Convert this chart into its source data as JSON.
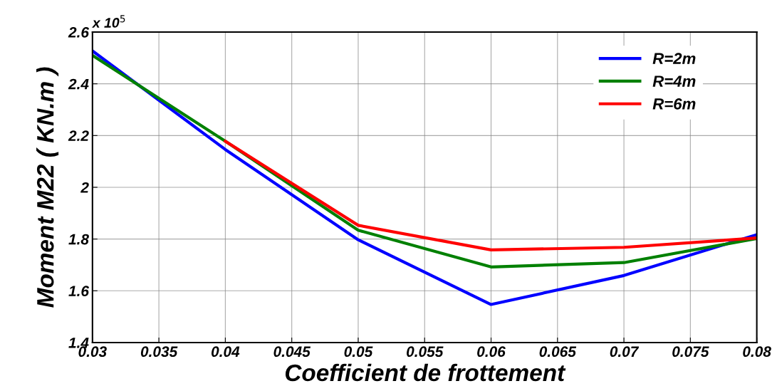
{
  "chart_data": {
    "type": "line",
    "xlabel": "Coefficient de frottement",
    "ylabel": "Moment M22 ( KN.m )",
    "annotations": [
      "x 10$^{5}$"
    ],
    "x": [
      0.03,
      0.04,
      0.05,
      0.06,
      0.07,
      0.08
    ],
    "series": [
      {
        "name": "R=2m",
        "color": "#0000ff",
        "values": [
          2.527,
          2.146,
          1.797,
          1.547,
          1.659,
          1.817
        ]
      },
      {
        "name": "R=4m",
        "color": "#008000",
        "values": [
          2.51,
          2.178,
          1.834,
          1.692,
          1.709,
          1.802
        ]
      },
      {
        "name": "R=6m",
        "color": "#ff0000",
        "values": [
          null,
          2.178,
          1.853,
          1.758,
          1.768,
          1.804
        ]
      }
    ],
    "xlim": [
      0.03,
      0.08
    ],
    "xticks": [
      0.03,
      0.035,
      0.04,
      0.045,
      0.05,
      0.055,
      0.06,
      0.065,
      0.07,
      0.075,
      0.08
    ],
    "ylim": [
      1.4,
      2.6
    ],
    "yticks": [
      1.4,
      1.6,
      1.8,
      2,
      2.2,
      2.4,
      2.6
    ],
    "grid": true,
    "legend": "top right",
    "marker": "none",
    "line_style": "solid"
  }
}
